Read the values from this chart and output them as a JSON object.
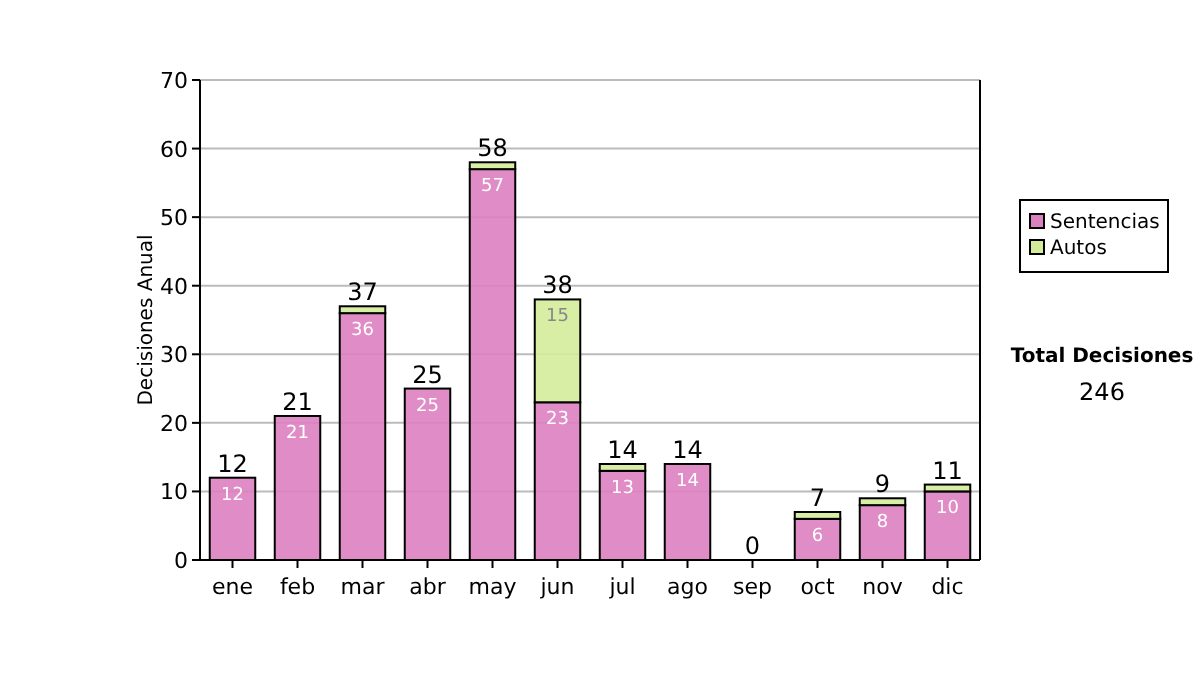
{
  "chart_data": {
    "type": "bar",
    "stacked": true,
    "ylabel": "Decisiones Anual",
    "categories": [
      "ene",
      "feb",
      "mar",
      "abr",
      "may",
      "jun",
      "jul",
      "ago",
      "sep",
      "oct",
      "nov",
      "dic"
    ],
    "series": [
      {
        "name": "Sentencias",
        "color": "#dd80c0",
        "values": [
          12,
          21,
          36,
          25,
          57,
          23,
          13,
          14,
          0,
          6,
          8,
          10
        ],
        "value_labels": [
          "12",
          "21",
          "36",
          "25",
          "57",
          "23",
          "13",
          "14",
          null,
          "6",
          "8",
          "10"
        ]
      },
      {
        "name": "Autos",
        "color": "#d4ec9a",
        "values": [
          0,
          0,
          1,
          0,
          1,
          15,
          1,
          0,
          0,
          1,
          1,
          1
        ],
        "value_labels": [
          null,
          null,
          null,
          null,
          null,
          "15",
          null,
          null,
          null,
          null,
          null,
          null
        ]
      }
    ],
    "totals": [
      "12",
      "21",
      "37",
      "25",
      "58",
      "38",
      "14",
      "14",
      "0",
      "7",
      "9",
      "11"
    ],
    "ylim": [
      0,
      70
    ],
    "yticks": [
      0,
      10,
      20,
      30,
      40,
      50,
      60,
      70
    ],
    "grid": "y",
    "legend": "right",
    "annotations": [
      "Total Decisiones",
      "246"
    ]
  }
}
